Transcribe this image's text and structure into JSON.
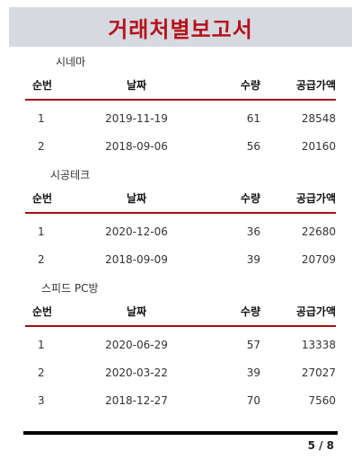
{
  "report": {
    "title": "거래처별보고서"
  },
  "columns": {
    "no": "순번",
    "date": "날짜",
    "qty": "수량",
    "amount": "공급가액"
  },
  "sections": [
    {
      "name": "시네마",
      "rows": [
        {
          "no": "1",
          "date": "2019-11-19",
          "qty": "61",
          "amount": "28548"
        },
        {
          "no": "2",
          "date": "2018-09-06",
          "qty": "56",
          "amount": "20160"
        }
      ]
    },
    {
      "name": "시공테크",
      "rows": [
        {
          "no": "1",
          "date": "2020-12-06",
          "qty": "36",
          "amount": "22680"
        },
        {
          "no": "2",
          "date": "2018-09-09",
          "qty": "39",
          "amount": "20709"
        }
      ]
    },
    {
      "name": "스피드 PC방",
      "rows": [
        {
          "no": "1",
          "date": "2020-06-29",
          "qty": "57",
          "amount": "13338"
        },
        {
          "no": "2",
          "date": "2020-03-22",
          "qty": "39",
          "amount": "27027"
        },
        {
          "no": "3",
          "date": "2018-12-27",
          "qty": "70",
          "amount": "7560"
        }
      ]
    }
  ],
  "footer": {
    "page": "5 / 8"
  },
  "colors": {
    "accent": "#b5121b",
    "title_bg": "#d7d9e0"
  }
}
